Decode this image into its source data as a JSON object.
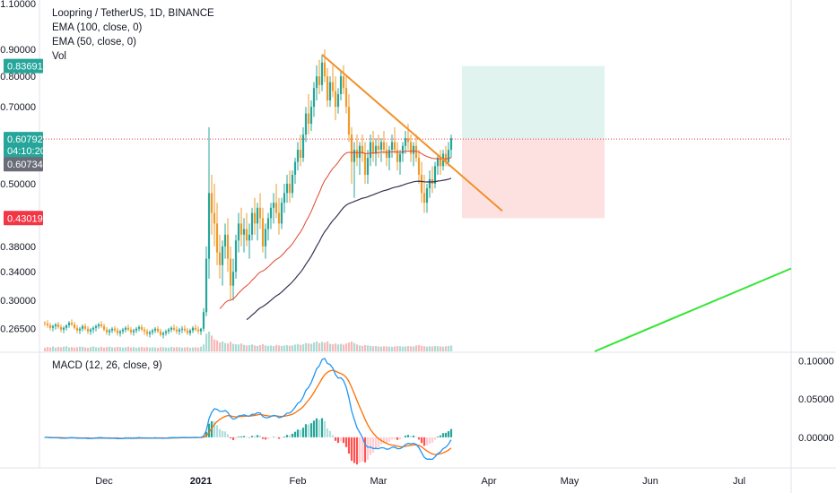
{
  "chart_data": [
    {
      "type": "candlestick",
      "title": "Loopring / TetherUS, 1D, BINANCE",
      "indicators": [
        "EMA (100, close, 0)",
        "EMA (50, close, 0)",
        "Vol"
      ],
      "y_scale": "log",
      "ylim": [
        0.24,
        1.1
      ],
      "y_ticks": [
        "1.10000",
        "0.90000",
        "0.80000",
        "0.70000",
        "0.50000",
        "0.38000",
        "0.34000",
        "0.30000",
        "0.26500"
      ],
      "x_ticks": [
        "Dec",
        "2021",
        "Feb",
        "Mar",
        "Apr",
        "May",
        "Jun",
        "Jul"
      ],
      "price_tags": [
        {
          "label": "0.83691",
          "value": 0.83691,
          "color": "#26a69a"
        },
        {
          "label": "0.60792",
          "value": 0.60792,
          "color": "#26a69a"
        },
        {
          "label": "04:10:20",
          "value": 0.5785,
          "color": "#26a69a"
        },
        {
          "label": "0.60734",
          "value": 0.5445,
          "color": "#6a6d78"
        },
        {
          "label": "0.43019",
          "value": 0.43019,
          "color": "#f23645"
        }
      ],
      "last_price": 0.60792,
      "colors": {
        "up": "#26a69a",
        "down": "#ef9b2c",
        "ema100": "#3b3054",
        "ema50": "#e0462e",
        "trendline": "#f29029",
        "green_line": "#33e633",
        "target_zone": "#e0f3ef",
        "stop_zone": "#fde1e1"
      },
      "candles": [
        [
          0.272,
          0.274,
          0.268,
          0.271
        ],
        [
          0.271,
          0.275,
          0.266,
          0.269
        ],
        [
          0.269,
          0.272,
          0.263,
          0.266
        ],
        [
          0.266,
          0.27,
          0.262,
          0.268
        ],
        [
          0.268,
          0.272,
          0.264,
          0.27
        ],
        [
          0.27,
          0.273,
          0.265,
          0.267
        ],
        [
          0.267,
          0.27,
          0.261,
          0.264
        ],
        [
          0.264,
          0.268,
          0.26,
          0.266
        ],
        [
          0.266,
          0.27,
          0.263,
          0.269
        ],
        [
          0.269,
          0.274,
          0.266,
          0.272
        ],
        [
          0.272,
          0.276,
          0.268,
          0.27
        ],
        [
          0.27,
          0.273,
          0.264,
          0.266
        ],
        [
          0.266,
          0.269,
          0.26,
          0.263
        ],
        [
          0.263,
          0.267,
          0.259,
          0.265
        ],
        [
          0.265,
          0.27,
          0.262,
          0.268
        ],
        [
          0.268,
          0.271,
          0.263,
          0.265
        ],
        [
          0.265,
          0.268,
          0.259,
          0.262
        ],
        [
          0.262,
          0.266,
          0.258,
          0.264
        ],
        [
          0.264,
          0.268,
          0.26,
          0.266
        ],
        [
          0.266,
          0.27,
          0.262,
          0.268
        ],
        [
          0.268,
          0.272,
          0.265,
          0.27
        ],
        [
          0.27,
          0.274,
          0.266,
          0.268
        ],
        [
          0.268,
          0.271,
          0.262,
          0.264
        ],
        [
          0.264,
          0.267,
          0.258,
          0.261
        ],
        [
          0.261,
          0.265,
          0.257,
          0.263
        ],
        [
          0.263,
          0.267,
          0.26,
          0.265
        ],
        [
          0.265,
          0.268,
          0.261,
          0.263
        ],
        [
          0.263,
          0.266,
          0.257,
          0.26
        ],
        [
          0.26,
          0.264,
          0.256,
          0.262
        ],
        [
          0.262,
          0.266,
          0.259,
          0.264
        ],
        [
          0.264,
          0.268,
          0.261,
          0.266
        ],
        [
          0.266,
          0.27,
          0.262,
          0.264
        ],
        [
          0.264,
          0.267,
          0.258,
          0.261
        ],
        [
          0.261,
          0.265,
          0.257,
          0.263
        ],
        [
          0.263,
          0.267,
          0.26,
          0.265
        ],
        [
          0.265,
          0.269,
          0.262,
          0.267
        ],
        [
          0.267,
          0.27,
          0.262,
          0.264
        ],
        [
          0.264,
          0.267,
          0.258,
          0.262
        ],
        [
          0.262,
          0.265,
          0.256,
          0.259
        ],
        [
          0.259,
          0.263,
          0.255,
          0.261
        ],
        [
          0.261,
          0.265,
          0.258,
          0.263
        ],
        [
          0.263,
          0.267,
          0.26,
          0.265
        ],
        [
          0.265,
          0.268,
          0.26,
          0.262
        ],
        [
          0.262,
          0.265,
          0.256,
          0.258
        ],
        [
          0.258,
          0.262,
          0.254,
          0.26
        ],
        [
          0.26,
          0.264,
          0.257,
          0.262
        ],
        [
          0.262,
          0.266,
          0.259,
          0.264
        ],
        [
          0.264,
          0.268,
          0.261,
          0.266
        ],
        [
          0.266,
          0.27,
          0.262,
          0.264
        ],
        [
          0.264,
          0.268,
          0.259,
          0.262
        ],
        [
          0.262,
          0.266,
          0.258,
          0.264
        ],
        [
          0.264,
          0.268,
          0.26,
          0.265
        ],
        [
          0.265,
          0.269,
          0.261,
          0.263
        ],
        [
          0.263,
          0.266,
          0.258,
          0.26
        ],
        [
          0.26,
          0.265,
          0.257,
          0.263
        ],
        [
          0.263,
          0.268,
          0.26,
          0.266
        ],
        [
          0.266,
          0.27,
          0.262,
          0.264
        ],
        [
          0.264,
          0.268,
          0.259,
          0.262
        ],
        [
          0.262,
          0.266,
          0.258,
          0.265
        ],
        [
          0.265,
          0.29,
          0.262,
          0.285
        ],
        [
          0.285,
          0.38,
          0.28,
          0.36
        ],
        [
          0.36,
          0.64,
          0.33,
          0.48
        ],
        [
          0.48,
          0.52,
          0.4,
          0.44
        ],
        [
          0.44,
          0.5,
          0.38,
          0.42
        ],
        [
          0.42,
          0.46,
          0.35,
          0.37
        ],
        [
          0.37,
          0.4,
          0.33,
          0.35
        ],
        [
          0.35,
          0.39,
          0.32,
          0.38
        ],
        [
          0.38,
          0.42,
          0.36,
          0.4
        ],
        [
          0.4,
          0.43,
          0.34,
          0.36
        ],
        [
          0.36,
          0.38,
          0.3,
          0.32
        ],
        [
          0.32,
          0.36,
          0.3,
          0.34
        ],
        [
          0.34,
          0.4,
          0.33,
          0.39
        ],
        [
          0.39,
          0.44,
          0.37,
          0.42
        ],
        [
          0.42,
          0.45,
          0.38,
          0.4
        ],
        [
          0.4,
          0.43,
          0.37,
          0.41
        ],
        [
          0.41,
          0.44,
          0.38,
          0.39
        ],
        [
          0.39,
          0.42,
          0.36,
          0.4
        ],
        [
          0.4,
          0.45,
          0.39,
          0.44
        ],
        [
          0.44,
          0.47,
          0.4,
          0.42
        ],
        [
          0.42,
          0.46,
          0.39,
          0.45
        ],
        [
          0.45,
          0.48,
          0.41,
          0.43
        ],
        [
          0.43,
          0.45,
          0.37,
          0.38
        ],
        [
          0.38,
          0.42,
          0.36,
          0.41
        ],
        [
          0.41,
          0.44,
          0.39,
          0.43
        ],
        [
          0.43,
          0.46,
          0.41,
          0.45
        ],
        [
          0.45,
          0.48,
          0.42,
          0.46
        ],
        [
          0.46,
          0.5,
          0.43,
          0.44
        ],
        [
          0.44,
          0.47,
          0.4,
          0.42
        ],
        [
          0.42,
          0.47,
          0.41,
          0.46
        ],
        [
          0.46,
          0.5,
          0.44,
          0.48
        ],
        [
          0.48,
          0.52,
          0.46,
          0.5
        ],
        [
          0.5,
          0.53,
          0.46,
          0.48
        ],
        [
          0.48,
          0.53,
          0.47,
          0.52
        ],
        [
          0.52,
          0.56,
          0.5,
          0.55
        ],
        [
          0.55,
          0.6,
          0.53,
          0.58
        ],
        [
          0.58,
          0.62,
          0.54,
          0.56
        ],
        [
          0.56,
          0.64,
          0.55,
          0.62
        ],
        [
          0.62,
          0.7,
          0.6,
          0.68
        ],
        [
          0.68,
          0.74,
          0.62,
          0.65
        ],
        [
          0.65,
          0.72,
          0.63,
          0.7
        ],
        [
          0.7,
          0.78,
          0.67,
          0.76
        ],
        [
          0.76,
          0.84,
          0.72,
          0.8
        ],
        [
          0.8,
          0.86,
          0.74,
          0.77
        ],
        [
          0.77,
          0.88,
          0.75,
          0.85
        ],
        [
          0.85,
          0.9,
          0.78,
          0.8
        ],
        [
          0.8,
          0.83,
          0.7,
          0.72
        ],
        [
          0.72,
          0.8,
          0.7,
          0.78
        ],
        [
          0.78,
          0.84,
          0.73,
          0.75
        ],
        [
          0.75,
          0.8,
          0.66,
          0.7
        ],
        [
          0.7,
          0.76,
          0.68,
          0.74
        ],
        [
          0.74,
          0.82,
          0.72,
          0.8
        ],
        [
          0.8,
          0.84,
          0.74,
          0.76
        ],
        [
          0.76,
          0.8,
          0.68,
          0.7
        ],
        [
          0.7,
          0.74,
          0.6,
          0.62
        ],
        [
          0.62,
          0.64,
          0.5,
          0.55
        ],
        [
          0.55,
          0.6,
          0.47,
          0.58
        ],
        [
          0.58,
          0.62,
          0.54,
          0.56
        ],
        [
          0.56,
          0.6,
          0.52,
          0.59
        ],
        [
          0.59,
          0.62,
          0.55,
          0.57
        ],
        [
          0.57,
          0.6,
          0.5,
          0.52
        ],
        [
          0.52,
          0.58,
          0.5,
          0.56
        ],
        [
          0.56,
          0.62,
          0.54,
          0.6
        ],
        [
          0.6,
          0.63,
          0.55,
          0.57
        ],
        [
          0.57,
          0.61,
          0.54,
          0.59
        ],
        [
          0.59,
          0.62,
          0.56,
          0.58
        ],
        [
          0.58,
          0.61,
          0.55,
          0.6
        ],
        [
          0.6,
          0.63,
          0.57,
          0.58
        ],
        [
          0.58,
          0.6,
          0.54,
          0.56
        ],
        [
          0.56,
          0.59,
          0.53,
          0.58
        ],
        [
          0.58,
          0.62,
          0.56,
          0.6
        ],
        [
          0.6,
          0.64,
          0.57,
          0.58
        ],
        [
          0.58,
          0.6,
          0.53,
          0.55
        ],
        [
          0.55,
          0.58,
          0.52,
          0.57
        ],
        [
          0.57,
          0.6,
          0.55,
          0.59
        ],
        [
          0.59,
          0.63,
          0.57,
          0.61
        ],
        [
          0.61,
          0.65,
          0.58,
          0.6
        ],
        [
          0.6,
          0.62,
          0.55,
          0.57
        ],
        [
          0.57,
          0.6,
          0.54,
          0.59
        ],
        [
          0.59,
          0.62,
          0.55,
          0.56
        ],
        [
          0.56,
          0.58,
          0.5,
          0.52
        ],
        [
          0.52,
          0.55,
          0.46,
          0.48
        ],
        [
          0.48,
          0.52,
          0.44,
          0.46
        ],
        [
          0.46,
          0.5,
          0.44,
          0.49
        ],
        [
          0.49,
          0.53,
          0.47,
          0.51
        ],
        [
          0.51,
          0.54,
          0.48,
          0.5
        ],
        [
          0.5,
          0.55,
          0.49,
          0.54
        ],
        [
          0.54,
          0.57,
          0.52,
          0.56
        ],
        [
          0.56,
          0.58,
          0.52,
          0.54
        ],
        [
          0.54,
          0.58,
          0.53,
          0.57
        ],
        [
          0.57,
          0.59,
          0.54,
          0.55
        ],
        [
          0.55,
          0.6,
          0.54,
          0.58
        ],
        [
          0.58,
          0.62,
          0.56,
          0.61
        ]
      ],
      "volumes": [
        0.18,
        0.22,
        0.2,
        0.25,
        0.19,
        0.23,
        0.21,
        0.24,
        0.26,
        0.2,
        0.22,
        0.19,
        0.21,
        0.24,
        0.23,
        0.2,
        0.18,
        0.22,
        0.25,
        0.21,
        0.2,
        0.23,
        0.19,
        0.22,
        0.24,
        0.21,
        0.2,
        0.23,
        0.22,
        0.19,
        0.21,
        0.24,
        0.2,
        0.22,
        0.18,
        0.21,
        0.23,
        0.2,
        0.22,
        0.19,
        0.21,
        0.2,
        0.18,
        0.22,
        0.21,
        0.2,
        0.19,
        0.23,
        0.2,
        0.22,
        0.21,
        0.19,
        0.2,
        0.22,
        0.18,
        0.2,
        0.21,
        0.19,
        0.24,
        0.35,
        0.9,
        1.0,
        0.8,
        0.6,
        0.55,
        0.45,
        0.5,
        0.42,
        0.4,
        0.48,
        0.38,
        0.36,
        0.35,
        0.4,
        0.33,
        0.3,
        0.32,
        0.35,
        0.3,
        0.28,
        0.32,
        0.36,
        0.3,
        0.28,
        0.3,
        0.27,
        0.33,
        0.3,
        0.28,
        0.3,
        0.32,
        0.29,
        0.3,
        0.34,
        0.38,
        0.33,
        0.36,
        0.42,
        0.4,
        0.38,
        0.45,
        0.5,
        0.42,
        0.48,
        0.44,
        0.5,
        0.38,
        0.36,
        0.4,
        0.35,
        0.38,
        0.34,
        0.4,
        0.45,
        0.5,
        0.42,
        0.35,
        0.3,
        0.28,
        0.32,
        0.3,
        0.28,
        0.26,
        0.27,
        0.25,
        0.24,
        0.26,
        0.25,
        0.24,
        0.23,
        0.25,
        0.27,
        0.26,
        0.24,
        0.25,
        0.27,
        0.26,
        0.25,
        0.3,
        0.32,
        0.28,
        0.26,
        0.24,
        0.26,
        0.25,
        0.27,
        0.26,
        0.25,
        0.24,
        0.26,
        0.28,
        0.3
      ],
      "trendline": [
        {
          "bar": 103,
          "value": 0.88
        },
        {
          "bar": 155,
          "value": 0.48
        }
      ],
      "green_line": [
        {
          "bar": 181,
          "value": 0.24
        },
        {
          "bar": 260,
          "value": 0.345
        }
      ],
      "position": {
        "from_bar": 155,
        "to_bar": 208,
        "entry": 0.60792,
        "target": 0.83691,
        "stop": 0.43019
      }
    },
    {
      "type": "macd",
      "title": "MACD (12, 26, close, 9)",
      "ylim": [
        -0.04,
        0.11
      ],
      "y_ticks": [
        "0.10000",
        "0.05000",
        "0.00000"
      ],
      "colors": {
        "macd": "#2196f3",
        "signal": "#ff6d00",
        "hist_up_strong": "#26a69a",
        "hist_up_weak": "#b2dfdb",
        "hist_down_strong": "#ff5252",
        "hist_down_weak": "#ffcdd2"
      }
    }
  ]
}
